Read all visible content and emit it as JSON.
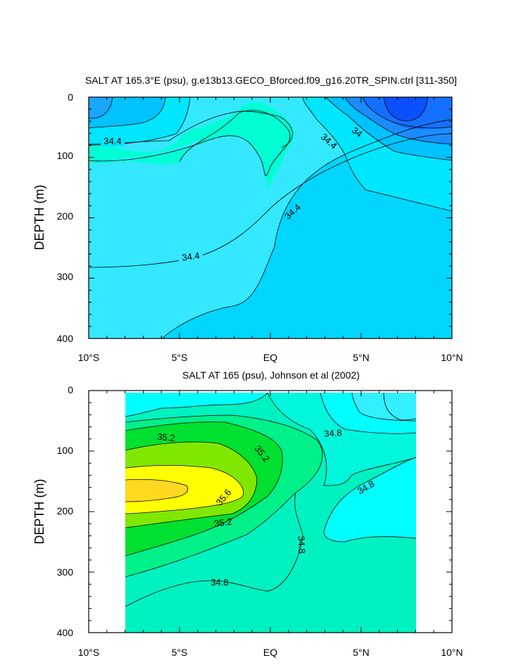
{
  "chart_data": [
    {
      "type": "contour",
      "title": "SALT AT 165.3°E (psu), g.e13b13.GECO_Bforced.f09_g16.20TR_SPIN.ctrl [311-350]",
      "ylabel": "DEPTH (m)",
      "xlabel": "",
      "xlim": [
        -10,
        10
      ],
      "ylim": [
        400,
        0
      ],
      "x_tick_labels": [
        "10°S",
        "5°S",
        "EQ",
        "5°N",
        "10°N"
      ],
      "y_tick_labels": [
        "0",
        "100",
        "200",
        "300",
        "400"
      ],
      "contour_interval": 0.2,
      "contour_labels": [
        "34.4",
        "34.4",
        "34",
        "34.4",
        "34.4"
      ],
      "colors": {
        "fresh_deep": "#0a50ff",
        "fresh": "#1a8cff",
        "mid_low": "#00c2ff",
        "mid": "#00e6ff",
        "mid_high": "#33e8ff",
        "salty": "#00ffd5"
      }
    },
    {
      "type": "contour",
      "title": "SALT AT 165 (psu), Johnson et al (2002)",
      "ylabel": "DEPTH (m)",
      "xlabel": "",
      "xlim": [
        -10,
        10
      ],
      "ylim": [
        400,
        0
      ],
      "data_xlim": [
        -8,
        8
      ],
      "x_tick_labels": [
        "10°S",
        "5°S",
        "EQ",
        "5°N",
        "10°N"
      ],
      "y_tick_labels": [
        "0",
        "100",
        "200",
        "300",
        "400"
      ],
      "contour_interval": 0.2,
      "contour_labels": [
        "35.2",
        "35.2",
        "34.8",
        "35.6",
        "34.8",
        "35.2",
        "34.8",
        "34.8"
      ],
      "max_salinity_core": "35.6 at about 165 m depth near 8°S",
      "colors": {
        "fresh": "#00ccff",
        "low": "#00ffff",
        "mid": "#00f2c0",
        "mid_high": "#00f08a",
        "high": "#00e030",
        "higher": "#80e800",
        "peak": "#ffff00",
        "core": "#ffd820"
      }
    }
  ]
}
